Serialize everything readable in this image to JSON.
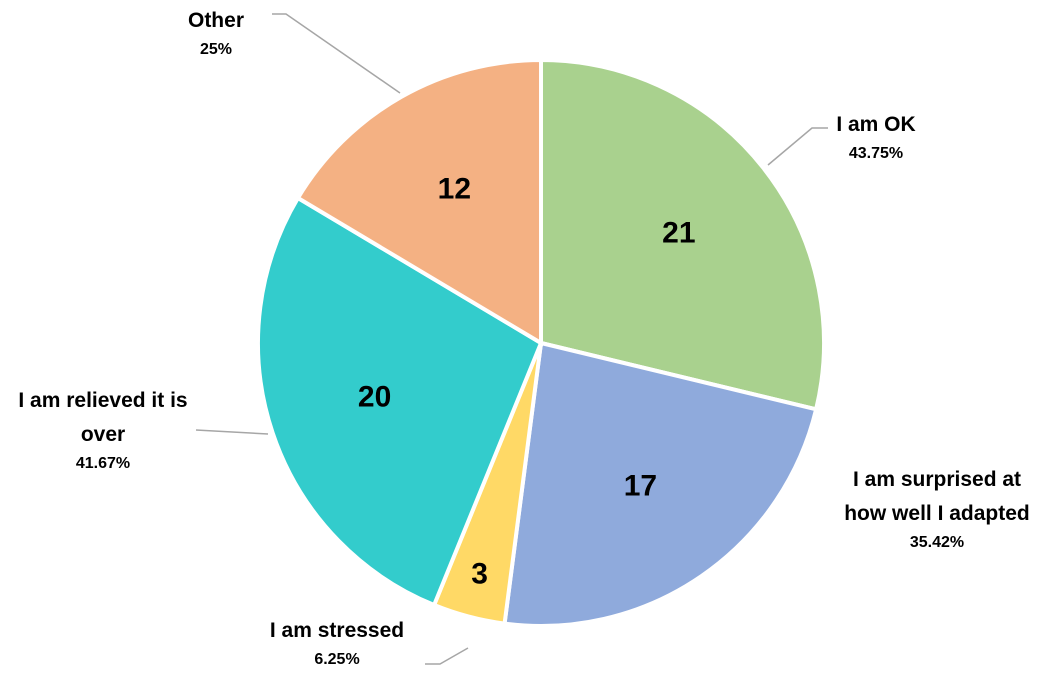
{
  "chart_data": {
    "type": "pie",
    "categories": [
      "I am OK",
      "I am surprised at how well I adapted",
      "I am stressed",
      "I am relieved it is over",
      "Other"
    ],
    "values": [
      21,
      17,
      3,
      20,
      12
    ],
    "percent_labels": [
      "43.75%",
      "35.42%",
      "6.25%",
      "41.67%",
      "25%"
    ],
    "colors": [
      "#a9d18e",
      "#8faadc",
      "#ffd966",
      "#33cccc",
      "#f4b183"
    ]
  }
}
